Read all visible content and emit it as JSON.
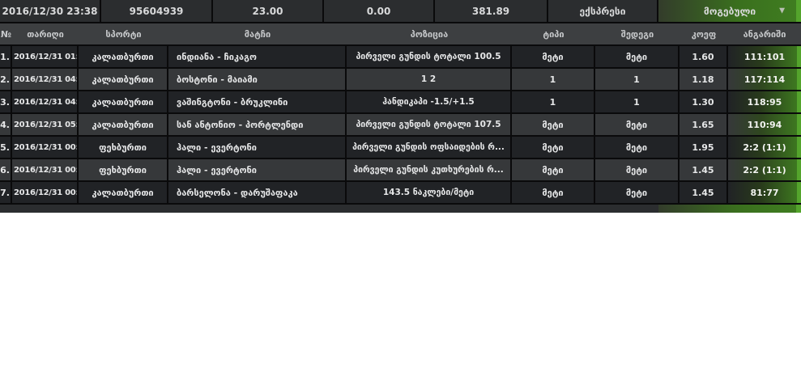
{
  "summary": {
    "datetime": "2016/12/30 23:38",
    "bet_id": "95604939",
    "stake": "23.00",
    "amount_secondary": "0.00",
    "payout": "381.89",
    "bet_kind": "ექსპრესი",
    "status": "მოგებული",
    "caret": "▼"
  },
  "table": {
    "columns": [
      "№",
      "თარიღი",
      "სპორტი",
      "მატჩი",
      "პოზიცია",
      "ტიპი",
      "შედეგი",
      "კოეფ",
      "ანგარიში"
    ],
    "rows": [
      {
        "num": "1.",
        "date": "2016/12/31 01:…",
        "sport": "კალათბურთი",
        "match": "ინდიანა - ჩიკაგო",
        "position": "პირველი გუნდის ტოტალი 100.5",
        "type": "მეტი",
        "result": "მეტი",
        "odds": "1.60",
        "score": "111:101"
      },
      {
        "num": "2.",
        "date": "2016/12/31 04:…",
        "sport": "კალათბურთი",
        "match": "ბოსტონი - მაიამი",
        "position": "1 2",
        "type": "1",
        "result": "1",
        "odds": "1.18",
        "score": "117:114"
      },
      {
        "num": "3.",
        "date": "2016/12/31 04:…",
        "sport": "კალათბურთი",
        "match": "ვაშინგტონი - ბრუკლინი",
        "position": "ჰანდიკაპი -1.5/+1.5",
        "type": "1",
        "result": "1",
        "odds": "1.30",
        "score": "118:95"
      },
      {
        "num": "4.",
        "date": "2016/12/31 05:…",
        "sport": "კალათბურთი",
        "match": "სან ანტონიო - პორტლენდი",
        "position": "პირველი გუნდის ტოტალი 107.5",
        "type": "მეტი",
        "result": "მეტი",
        "odds": "1.65",
        "score": "110:94"
      },
      {
        "num": "5.",
        "date": "2016/12/31 00:…",
        "sport": "ფეხბურთი",
        "match": "ჰალი - ევერტონი",
        "position": "პირველი გუნდის ოფსაიდების რ...",
        "type": "მეტი",
        "result": "მეტი",
        "odds": "1.95",
        "score": "2:2 (1:1)"
      },
      {
        "num": "6.",
        "date": "2016/12/31 00:…",
        "sport": "ფეხბურთი",
        "match": "ჰალი - ევერტონი",
        "position": "პირველი გუნდის კუთხურების რ...",
        "type": "მეტი",
        "result": "მეტი",
        "odds": "1.45",
        "score": "2:2 (1:1)"
      },
      {
        "num": "7.",
        "date": "2016/12/31 00:…",
        "sport": "კალათბურთი",
        "match": "ბარსელონა - დარუშაფაკა",
        "position": "143.5 ნაკლები/მეტი",
        "type": "მეტი",
        "result": "მეტი",
        "odds": "1.45",
        "score": "81:77"
      }
    ]
  },
  "colors": {
    "bar_bg": "#2b2d2f",
    "header_bg": "#3d3f41",
    "row_dark": "#212326",
    "row_light": "#36383a",
    "green_mid": "#3f7d20",
    "green_bright": "#54a42c",
    "border": "#0a0a0b"
  }
}
